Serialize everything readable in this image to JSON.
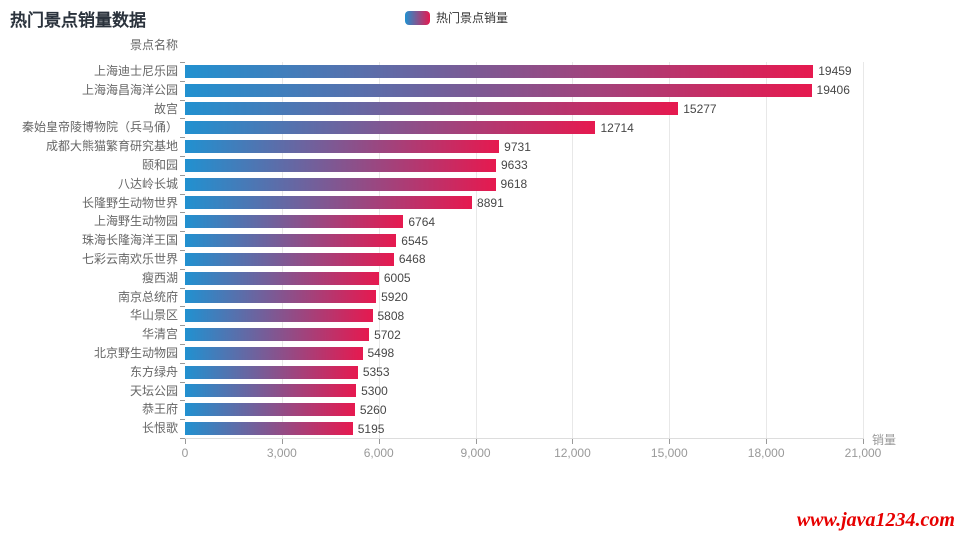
{
  "title": "热门景点销量数据",
  "legend": {
    "label": "热门景点销量"
  },
  "watermark": "www.java1234.com",
  "colors": {
    "bar_gradient_start": "#2191d0",
    "bar_gradient_end": "#e6194f",
    "grid_line": "#e8e8e8",
    "axis_tick": "#999999",
    "watermark_red": "#e60000"
  },
  "chart_data": {
    "type": "bar",
    "orientation": "horizontal",
    "title": "热门景点销量数据",
    "series_name": "热门景点销量",
    "xlabel": "销量",
    "ylabel": "景点名称",
    "xlim": [
      0,
      21000
    ],
    "x_ticks": [
      0,
      3000,
      6000,
      9000,
      12000,
      15000,
      18000,
      21000
    ],
    "grid": true,
    "legend_position": "top-center",
    "categories": [
      "上海迪士尼乐园",
      "上海海昌海洋公园",
      "故宫",
      "秦始皇帝陵博物院（兵马俑）",
      "成都大熊猫繁育研究基地",
      "颐和园",
      "八达岭长城",
      "长隆野生动物世界",
      "上海野生动物园",
      "珠海长隆海洋王国",
      "七彩云南欢乐世界",
      "瘦西湖",
      "南京总统府",
      "华山景区",
      "华清宫",
      "北京野生动物园",
      "东方绿舟",
      "天坛公园",
      "恭王府",
      "长恨歌"
    ],
    "values": [
      19459,
      19406,
      15277,
      12714,
      9731,
      9633,
      9618,
      8891,
      6764,
      6545,
      6468,
      6005,
      5920,
      5808,
      5702,
      5498,
      5353,
      5300,
      5260,
      5195
    ]
  }
}
